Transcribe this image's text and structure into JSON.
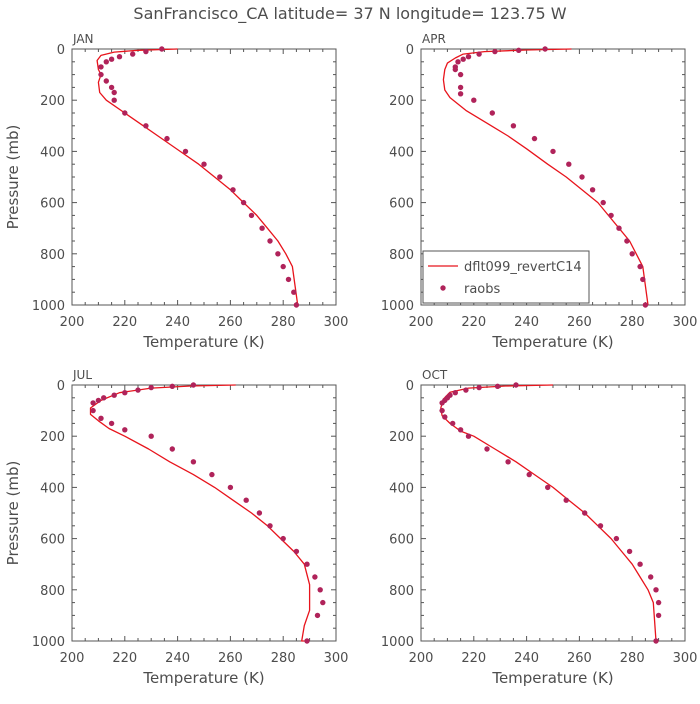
{
  "figure_title": "SanFrancisco_CA  latitude= 37 N longitude= 123.75 W",
  "colors": {
    "model_line": "#e8141c",
    "obs_marker": "#b0235a",
    "axis": "#555555",
    "text": "#4d4d4d"
  },
  "chart_data": [
    {
      "type": "line",
      "title": "JAN",
      "xlabel": "Temperature (K)",
      "ylabel": "Pressure (mb)",
      "xlim": [
        200,
        300
      ],
      "ylim": [
        1000,
        0
      ],
      "y_reversed": true,
      "xticks": [
        "200",
        "220",
        "240",
        "260",
        "280",
        "300"
      ],
      "yticks": [
        "0",
        "200",
        "400",
        "600",
        "800",
        "1000"
      ],
      "legend": null,
      "series": [
        {
          "name": "dflt099_revertC14",
          "kind": "line",
          "x": [
            240,
            225,
            216,
            211,
            209.5,
            210,
            211,
            210,
            210.5,
            213,
            220,
            227,
            234,
            241,
            248,
            254,
            260,
            265,
            270,
            274,
            278,
            281,
            283.5,
            285.5
          ],
          "y": [
            0,
            5,
            12,
            25,
            45,
            80,
            100,
            130,
            170,
            200,
            250,
            300,
            350,
            400,
            450,
            500,
            550,
            600,
            650,
            700,
            750,
            800,
            850,
            1000
          ]
        },
        {
          "name": "raobs",
          "kind": "scatter",
          "x": [
            234,
            228,
            223,
            218,
            215,
            213,
            211,
            211,
            213,
            215,
            216,
            216,
            220,
            228,
            236,
            243,
            250,
            256,
            261,
            265,
            268,
            272,
            275,
            278,
            280,
            282,
            284,
            285
          ],
          "y": [
            0,
            10,
            20,
            30,
            40,
            50,
            70,
            100,
            125,
            150,
            170,
            200,
            250,
            300,
            350,
            400,
            450,
            500,
            550,
            600,
            650,
            700,
            750,
            800,
            850,
            900,
            950,
            1000
          ]
        }
      ]
    },
    {
      "type": "line",
      "title": "APR",
      "xlabel": "Temperature (K)",
      "ylabel": "",
      "xlim": [
        200,
        300
      ],
      "ylim": [
        1000,
        0
      ],
      "y_reversed": true,
      "xticks": [
        "200",
        "220",
        "240",
        "260",
        "280",
        "300"
      ],
      "yticks": [
        "0",
        "200",
        "400",
        "600",
        "800",
        "1000"
      ],
      "legend": "bottom-left",
      "series": [
        {
          "name": "dflt099_revertC14",
          "kind": "line",
          "x": [
            257,
            240,
            224,
            216,
            213,
            210,
            209,
            208.5,
            209,
            211,
            217,
            225,
            233,
            240,
            248,
            255,
            261,
            267,
            271,
            275,
            279,
            281.5,
            284,
            286
          ],
          "y": [
            0,
            4,
            10,
            20,
            35,
            55,
            80,
            120,
            160,
            190,
            240,
            290,
            340,
            390,
            450,
            500,
            550,
            600,
            650,
            700,
            750,
            800,
            850,
            1000
          ]
        },
        {
          "name": "raobs",
          "kind": "scatter",
          "x": [
            247,
            237,
            228,
            222,
            218,
            216,
            214,
            213,
            213,
            215,
            215,
            215,
            220,
            227,
            235,
            243,
            250,
            256,
            261,
            265,
            269,
            272,
            275,
            278,
            280,
            283,
            284,
            285
          ],
          "y": [
            0,
            5,
            10,
            20,
            30,
            40,
            50,
            70,
            80,
            100,
            150,
            175,
            200,
            250,
            300,
            350,
            400,
            450,
            500,
            550,
            600,
            650,
            700,
            750,
            800,
            850,
            900,
            1000
          ]
        }
      ]
    },
    {
      "type": "line",
      "title": "JUL",
      "xlabel": "Temperature (K)",
      "ylabel": "Pressure (mb)",
      "xlim": [
        200,
        300
      ],
      "ylim": [
        1000,
        0
      ],
      "y_reversed": true,
      "xticks": [
        "200",
        "220",
        "240",
        "260",
        "280",
        "300"
      ],
      "yticks": [
        "0",
        "200",
        "400",
        "600",
        "800",
        "1000"
      ],
      "legend": null,
      "series": [
        {
          "name": "dflt099_revertC14",
          "kind": "line",
          "x": [
            262,
            245,
            230,
            218,
            211,
            207,
            207,
            210,
            214,
            220,
            229,
            237,
            246,
            254,
            261,
            268,
            274,
            279,
            284,
            288,
            290,
            290,
            288,
            287,
            288
          ],
          "y": [
            0,
            4,
            12,
            30,
            60,
            90,
            115,
            140,
            170,
            200,
            250,
            300,
            350,
            400,
            450,
            500,
            550,
            600,
            650,
            700,
            780,
            880,
            940,
            1000,
            1000
          ]
        },
        {
          "name": "raobs",
          "kind": "scatter",
          "x": [
            246,
            238,
            230,
            225,
            220,
            216,
            212,
            210,
            208,
            208,
            211,
            215,
            220,
            230,
            238,
            246,
            253,
            260,
            266,
            271,
            275,
            280,
            285,
            289,
            292,
            294,
            295,
            293,
            289
          ],
          "y": [
            0,
            5,
            10,
            20,
            30,
            40,
            50,
            60,
            70,
            100,
            130,
            150,
            175,
            200,
            250,
            300,
            350,
            400,
            450,
            500,
            550,
            600,
            650,
            700,
            750,
            800,
            850,
            900,
            1000
          ]
        }
      ]
    },
    {
      "type": "line",
      "title": "OCT",
      "xlabel": "Temperature (K)",
      "ylabel": "",
      "xlim": [
        200,
        300
      ],
      "ylim": [
        1000,
        0
      ],
      "y_reversed": true,
      "xticks": [
        "200",
        "220",
        "240",
        "260",
        "280",
        "300"
      ],
      "yticks": [
        "0",
        "200",
        "400",
        "600",
        "800",
        "1000"
      ],
      "legend": null,
      "series": [
        {
          "name": "dflt099_revertC14",
          "kind": "line",
          "x": [
            250,
            232,
            218,
            211,
            208.5,
            207.5,
            208,
            211,
            215,
            220,
            228,
            236,
            243,
            250,
            256,
            262,
            267,
            272,
            276,
            280,
            283,
            286,
            288,
            289
          ],
          "y": [
            0,
            4,
            12,
            28,
            55,
            90,
            120,
            150,
            180,
            200,
            250,
            300,
            350,
            400,
            450,
            500,
            550,
            600,
            650,
            700,
            750,
            800,
            850,
            1000
          ]
        },
        {
          "name": "raobs",
          "kind": "scatter",
          "x": [
            236,
            229,
            222,
            217,
            213,
            211,
            210,
            209,
            208,
            208,
            209,
            212,
            215,
            218,
            225,
            233,
            241,
            248,
            255,
            262,
            268,
            274,
            279,
            283,
            287,
            289,
            290,
            290,
            289
          ],
          "y": [
            0,
            5,
            10,
            20,
            30,
            40,
            50,
            60,
            70,
            100,
            125,
            150,
            175,
            200,
            250,
            300,
            350,
            400,
            450,
            500,
            550,
            600,
            650,
            700,
            750,
            800,
            850,
            900,
            1000
          ]
        }
      ]
    }
  ]
}
